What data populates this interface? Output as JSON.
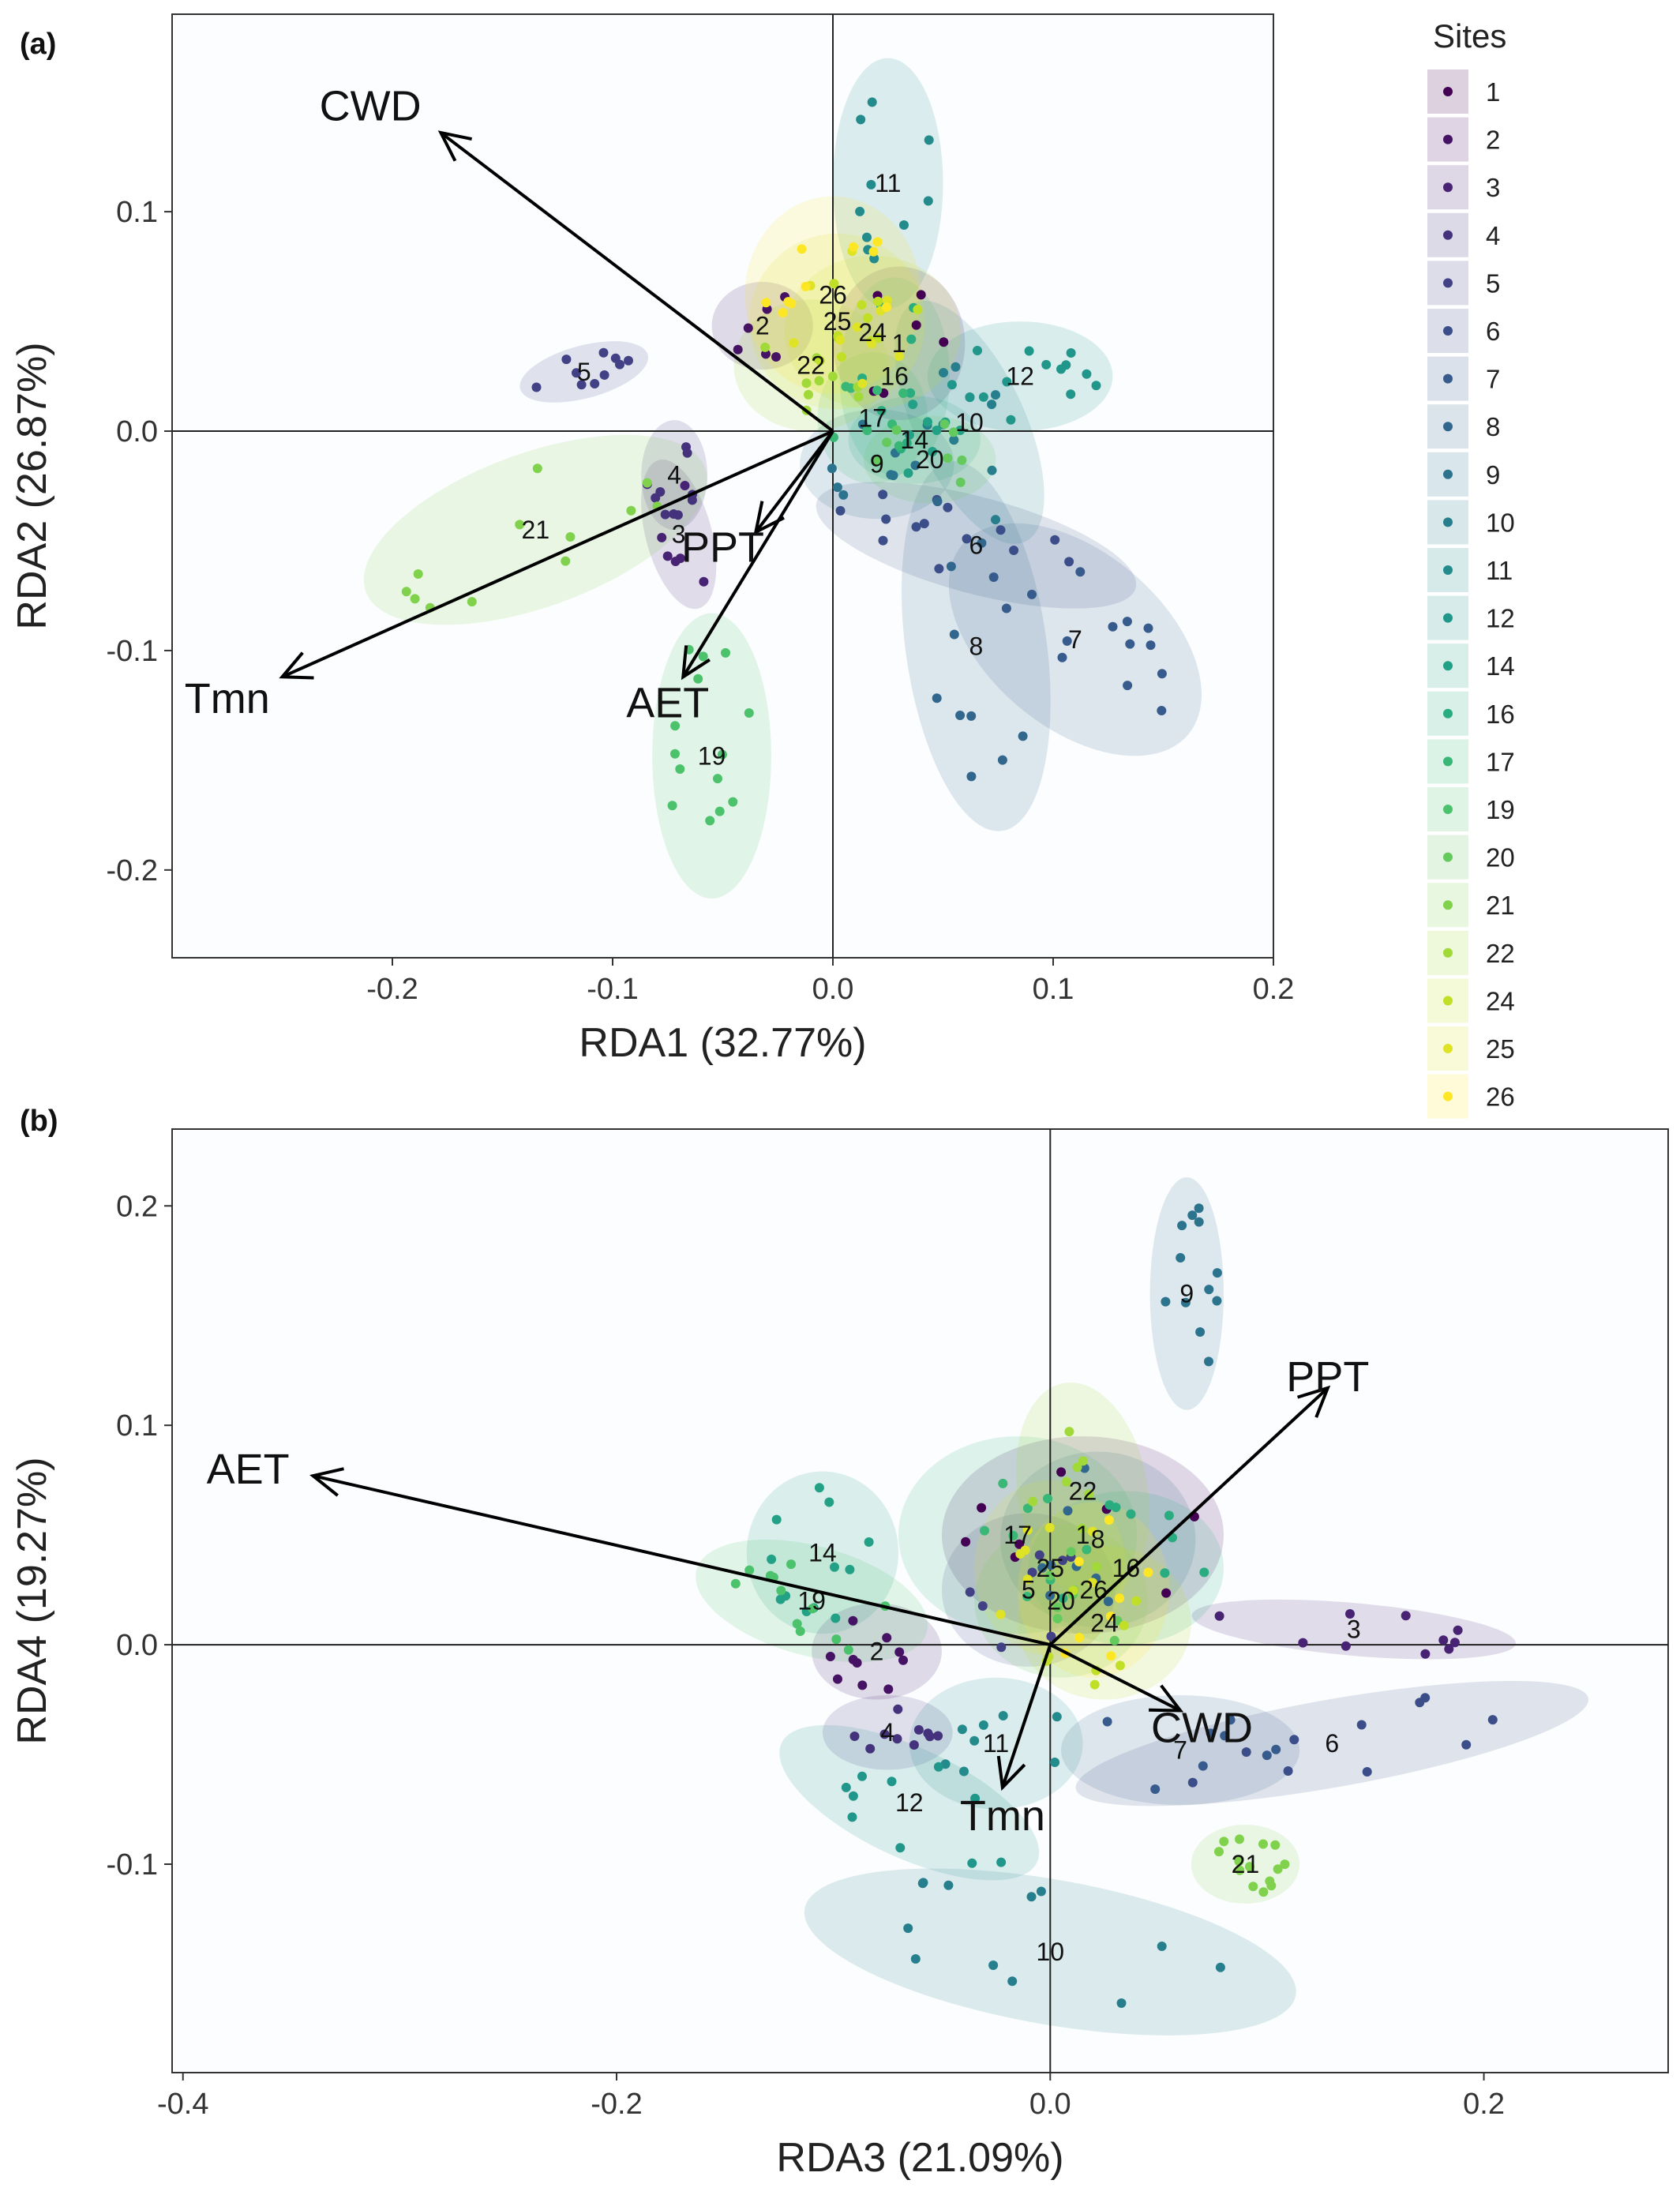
{
  "colors": {
    "viridis": [
      "#440154",
      "#482475",
      "#414487",
      "#355f8d",
      "#2a788e",
      "#21918c",
      "#22a884",
      "#44bf70",
      "#7ad151",
      "#bddf26",
      "#fde725"
    ],
    "arrow": "#000000",
    "plot_bg": "#fbfdfe"
  },
  "chart_data": [
    {
      "type": "scatter",
      "panel_tag": "(a)",
      "xlabel": "RDA1 (32.77%)",
      "ylabel": "RDA2 (26.87%)",
      "xlim": [
        -0.3,
        0.2
      ],
      "ylim": [
        -0.24,
        0.19
      ],
      "xticks": [
        -0.2,
        -0.1,
        0.0,
        0.1,
        0.2
      ],
      "xtick_labels": [
        "-0.2",
        "-0.1",
        "0.0",
        "0.1",
        "0.2"
      ],
      "yticks": [
        -0.2,
        -0.1,
        0.0,
        0.1
      ],
      "ytick_labels": [
        "-0.2",
        "-0.1",
        "0.0",
        "0.1"
      ],
      "vectors": [
        {
          "name": "CWD",
          "x": -0.178,
          "y": 0.136,
          "label_x": -0.21,
          "label_y": 0.148
        },
        {
          "name": "Tmn",
          "x": -0.25,
          "y": -0.112,
          "label_x": -0.275,
          "label_y": -0.122
        },
        {
          "name": "PPT",
          "x": -0.035,
          "y": -0.046,
          "label_x": -0.05,
          "label_y": -0.053
        },
        {
          "name": "AET",
          "x": -0.068,
          "y": -0.112,
          "label_x": -0.075,
          "label_y": -0.124
        }
      ],
      "sites": [
        {
          "site": "1",
          "x": 0.03,
          "y": 0.04,
          "rx": 0.03,
          "ry": 0.035,
          "angle": 0,
          "n": 6
        },
        {
          "site": "2",
          "x": -0.032,
          "y": 0.048,
          "rx": 0.023,
          "ry": 0.02,
          "angle": 0,
          "n": 6
        },
        {
          "site": "3",
          "x": -0.07,
          "y": -0.047,
          "rx": 0.015,
          "ry": 0.035,
          "angle": 15,
          "n": 6
        },
        {
          "site": "4",
          "x": -0.072,
          "y": -0.02,
          "rx": 0.015,
          "ry": 0.025,
          "angle": 0,
          "n": 10
        },
        {
          "site": "5",
          "x": -0.113,
          "y": 0.027,
          "rx": 0.03,
          "ry": 0.012,
          "angle": 15,
          "n": 10
        },
        {
          "site": "6",
          "x": 0.065,
          "y": -0.052,
          "rx": 0.075,
          "ry": 0.022,
          "angle": -15,
          "n": 14
        },
        {
          "site": "7",
          "x": 0.11,
          "y": -0.095,
          "rx": 0.067,
          "ry": 0.04,
          "angle": -40,
          "n": 14
        },
        {
          "site": "8",
          "x": 0.065,
          "y": -0.098,
          "rx": 0.032,
          "ry": 0.085,
          "angle": 8,
          "n": 10
        },
        {
          "site": "9",
          "x": 0.02,
          "y": -0.015,
          "rx": 0.035,
          "ry": 0.025,
          "angle": 0,
          "n": 8
        },
        {
          "site": "10",
          "x": 0.062,
          "y": 0.004,
          "rx": 0.025,
          "ry": 0.06,
          "angle": 25,
          "n": 10
        },
        {
          "site": "11",
          "x": 0.025,
          "y": 0.113,
          "rx": 0.025,
          "ry": 0.057,
          "angle": 0,
          "n": 10
        },
        {
          "site": "12",
          "x": 0.085,
          "y": 0.025,
          "rx": 0.042,
          "ry": 0.025,
          "angle": 0,
          "n": 14
        },
        {
          "site": "14",
          "x": 0.037,
          "y": -0.004,
          "rx": 0.03,
          "ry": 0.02,
          "angle": 0,
          "n": 8
        },
        {
          "site": "16",
          "x": 0.028,
          "y": 0.025,
          "rx": 0.025,
          "ry": 0.045,
          "angle": 0,
          "n": 8
        },
        {
          "site": "17",
          "x": 0.018,
          "y": 0.006,
          "rx": 0.025,
          "ry": 0.03,
          "angle": 0,
          "n": 8
        },
        {
          "site": "19",
          "x": -0.055,
          "y": -0.148,
          "rx": 0.027,
          "ry": 0.065,
          "angle": 0,
          "n": 14
        },
        {
          "site": "20",
          "x": 0.044,
          "y": -0.013,
          "rx": 0.03,
          "ry": 0.02,
          "angle": 0,
          "n": 8
        },
        {
          "site": "21",
          "x": -0.135,
          "y": -0.045,
          "rx": 0.082,
          "ry": 0.035,
          "angle": 20,
          "n": 12
        },
        {
          "site": "22",
          "x": -0.01,
          "y": 0.03,
          "rx": 0.035,
          "ry": 0.03,
          "angle": 0,
          "n": 10
        },
        {
          "site": "24",
          "x": 0.018,
          "y": 0.045,
          "rx": 0.04,
          "ry": 0.035,
          "angle": 0,
          "n": 10
        },
        {
          "site": "25",
          "x": 0.002,
          "y": 0.05,
          "rx": 0.04,
          "ry": 0.04,
          "angle": 0,
          "n": 10
        },
        {
          "site": "26",
          "x": 0.0,
          "y": 0.062,
          "rx": 0.04,
          "ry": 0.045,
          "angle": 0,
          "n": 10
        }
      ]
    },
    {
      "type": "scatter",
      "panel_tag": "(b)",
      "xlabel": "RDA3 (21.09%)",
      "ylabel": "RDA4 (19.27%)",
      "xlim": [
        -0.405,
        0.285
      ],
      "ylim": [
        -0.195,
        0.235
      ],
      "xticks": [
        -0.4,
        -0.2,
        0.0,
        0.2
      ],
      "xtick_labels": [
        "-0.4",
        "-0.2",
        "0.0",
        "0.2"
      ],
      "yticks": [
        -0.1,
        0.0,
        0.1,
        0.2
      ],
      "ytick_labels": [
        "-0.1",
        "0.0",
        "0.1",
        "0.2"
      ],
      "vectors": [
        {
          "name": "AET",
          "x": -0.34,
          "y": 0.077,
          "label_x": -0.37,
          "label_y": 0.08
        },
        {
          "name": "PPT",
          "x": 0.128,
          "y": 0.117,
          "label_x": 0.128,
          "label_y": 0.122
        },
        {
          "name": "CWD",
          "x": 0.06,
          "y": -0.03,
          "label_x": 0.07,
          "label_y": -0.038
        },
        {
          "name": "Tmn",
          "x": -0.022,
          "y": -0.065,
          "label_x": -0.022,
          "label_y": -0.078
        }
      ],
      "sites": [
        {
          "site": "1",
          "x": 0.015,
          "y": 0.05,
          "rx": 0.065,
          "ry": 0.045,
          "angle": 0,
          "n": 8
        },
        {
          "site": "2",
          "x": -0.08,
          "y": -0.003,
          "rx": 0.03,
          "ry": 0.022,
          "angle": 0,
          "n": 10
        },
        {
          "site": "3",
          "x": 0.14,
          "y": 0.007,
          "rx": 0.075,
          "ry": 0.012,
          "angle": -5,
          "n": 10
        },
        {
          "site": "4",
          "x": -0.075,
          "y": -0.04,
          "rx": 0.03,
          "ry": 0.017,
          "angle": 0,
          "n": 10
        },
        {
          "site": "5",
          "x": -0.01,
          "y": 0.025,
          "rx": 0.04,
          "ry": 0.035,
          "angle": 0,
          "n": 8
        },
        {
          "site": "6",
          "x": 0.13,
          "y": -0.045,
          "rx": 0.12,
          "ry": 0.02,
          "angle": 10,
          "n": 10
        },
        {
          "site": "7",
          "x": 0.06,
          "y": -0.048,
          "rx": 0.055,
          "ry": 0.025,
          "angle": 0,
          "n": 8
        },
        {
          "site": "8",
          "x": 0.022,
          "y": 0.048,
          "rx": 0.045,
          "ry": 0.04,
          "angle": 0,
          "n": 8
        },
        {
          "site": "9",
          "x": 0.063,
          "y": 0.16,
          "rx": 0.017,
          "ry": 0.053,
          "angle": 0,
          "n": 12
        },
        {
          "site": "10",
          "x": 0.0,
          "y": -0.14,
          "rx": 0.115,
          "ry": 0.033,
          "angle": -10,
          "n": 12
        },
        {
          "site": "11",
          "x": -0.025,
          "y": -0.045,
          "rx": 0.04,
          "ry": 0.03,
          "angle": 0,
          "n": 8
        },
        {
          "site": "12",
          "x": -0.065,
          "y": -0.072,
          "rx": 0.065,
          "ry": 0.025,
          "angle": -25,
          "n": 10
        },
        {
          "site": "14",
          "x": -0.105,
          "y": 0.042,
          "rx": 0.035,
          "ry": 0.037,
          "angle": 0,
          "n": 12
        },
        {
          "site": "16",
          "x": 0.035,
          "y": 0.035,
          "rx": 0.045,
          "ry": 0.035,
          "angle": 0,
          "n": 8
        },
        {
          "site": "17",
          "x": -0.015,
          "y": 0.05,
          "rx": 0.055,
          "ry": 0.045,
          "angle": 0,
          "n": 8
        },
        {
          "site": "19",
          "x": -0.11,
          "y": 0.02,
          "rx": 0.055,
          "ry": 0.025,
          "angle": -15,
          "n": 12
        },
        {
          "site": "20",
          "x": 0.005,
          "y": 0.02,
          "rx": 0.04,
          "ry": 0.035,
          "angle": 0,
          "n": 8
        },
        {
          "site": "21",
          "x": 0.09,
          "y": -0.1,
          "rx": 0.025,
          "ry": 0.018,
          "angle": 0,
          "n": 14
        },
        {
          "site": "22",
          "x": 0.015,
          "y": 0.07,
          "rx": 0.03,
          "ry": 0.05,
          "angle": 10,
          "n": 8
        },
        {
          "site": "24",
          "x": 0.025,
          "y": 0.01,
          "rx": 0.04,
          "ry": 0.035,
          "angle": 0,
          "n": 8
        },
        {
          "site": "25",
          "x": 0.0,
          "y": 0.035,
          "rx": 0.035,
          "ry": 0.04,
          "angle": 0,
          "n": 8
        },
        {
          "site": "26",
          "x": 0.02,
          "y": 0.025,
          "rx": 0.035,
          "ry": 0.04,
          "angle": 0,
          "n": 8
        }
      ]
    }
  ],
  "legend": {
    "title": "Sites",
    "entries": [
      "1",
      "2",
      "3",
      "4",
      "5",
      "6",
      "7",
      "8",
      "9",
      "10",
      "11",
      "12",
      "14",
      "16",
      "17",
      "19",
      "20",
      "21",
      "22",
      "24",
      "25",
      "26"
    ]
  }
}
